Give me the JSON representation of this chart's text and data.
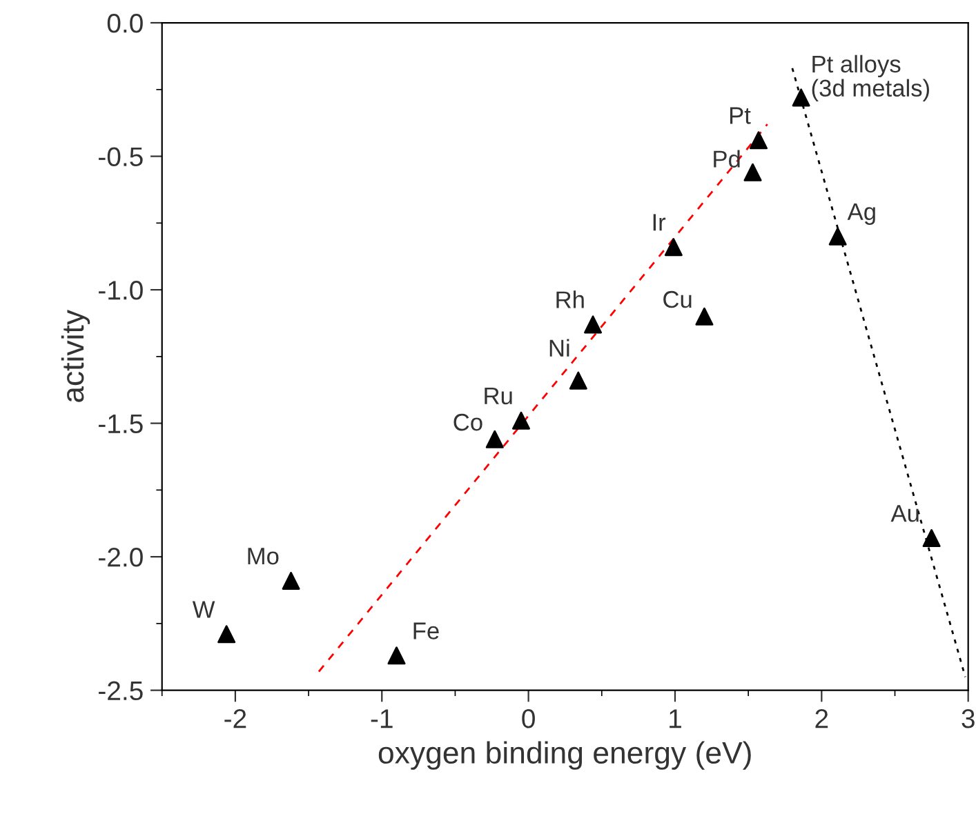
{
  "chart_data": {
    "type": "scatter",
    "xlabel": "oxygen binding energy (eV)",
    "ylabel": "activity",
    "xlim": [
      -2.5,
      3
    ],
    "ylim": [
      -2.5,
      0
    ],
    "xticks": [
      -2,
      -1,
      0,
      1,
      2,
      3
    ],
    "yticks": [
      {
        "value": -2.5,
        "label": "-2.5"
      },
      {
        "value": -2.0,
        "label": "-2.0"
      },
      {
        "value": -1.5,
        "label": "-1.5"
      },
      {
        "value": -1.0,
        "label": "-1.0"
      },
      {
        "value": -0.5,
        "label": "-0.5"
      },
      {
        "value": 0,
        "label": "0.0"
      }
    ],
    "grid": false,
    "legend": false,
    "series": [
      {
        "color": "#000000",
        "marker": "triangle",
        "x": [
          -2.06,
          -1.62,
          -0.9,
          -0.23,
          -0.05,
          0.34,
          0.44,
          0.99,
          1.2,
          1.53,
          1.57,
          1.86,
          2.11,
          2.75
        ],
        "values": [
          -2.29,
          -2.09,
          -2.37,
          -1.56,
          -1.49,
          -1.34,
          -1.13,
          -0.84,
          -1.1,
          -0.56,
          -0.44,
          -0.28,
          -0.8,
          -1.93
        ]
      },
      {
        "type": "line",
        "color": "#ff0000",
        "line_style": "dashed",
        "marker": "none",
        "x": [
          -1.43,
          1.63
        ],
        "values": [
          -2.43,
          -0.38
        ]
      },
      {
        "type": "line",
        "color": "#000000",
        "line_style": "dotted",
        "marker": "none",
        "x": [
          1.8,
          2.98
        ],
        "values": [
          -0.17,
          -2.45
        ]
      }
    ],
    "annotations": [
      {
        "text": "W",
        "x": -2.06,
        "y": -2.29
      },
      {
        "text": "Mo",
        "x": -1.62,
        "y": -2.09
      },
      {
        "text": "Fe",
        "x": -0.9,
        "y": -2.37
      },
      {
        "text": "Co",
        "x": -0.23,
        "y": -1.56
      },
      {
        "text": "Ru",
        "x": -0.05,
        "y": -1.49
      },
      {
        "text": "Ni",
        "x": 0.34,
        "y": -1.34
      },
      {
        "text": "Rh",
        "x": 0.44,
        "y": -1.13
      },
      {
        "text": "Ir",
        "x": 0.99,
        "y": -0.84
      },
      {
        "text": "Cu",
        "x": 1.2,
        "y": -1.1
      },
      {
        "text": "Pd",
        "x": 1.53,
        "y": -0.56
      },
      {
        "text": "Pt",
        "x": 1.57,
        "y": -0.44
      },
      {
        "text": "Pt alloys\n(3d metals)",
        "x": 1.86,
        "y": -0.28
      },
      {
        "text": "Ag",
        "x": 2.11,
        "y": -0.8
      },
      {
        "text": "Au",
        "x": 2.75,
        "y": -1.93
      }
    ]
  }
}
